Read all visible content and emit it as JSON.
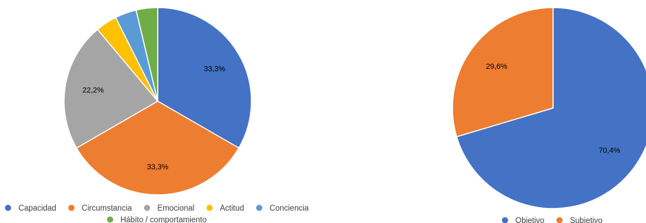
{
  "chart_data": [
    {
      "type": "pie",
      "title": "",
      "categories": [
        "Capacidad",
        "Circumstancia",
        "Emocional",
        "Actitud",
        "Conciencia",
        "Hábito / comportamiento"
      ],
      "values": [
        33.3,
        33.3,
        22.2,
        3.7,
        3.7,
        3.7
      ],
      "data_labels": [
        "33,3%",
        "33,3%",
        "22,2%",
        "",
        "",
        ""
      ],
      "colors": [
        "#4472C4",
        "#ED7D31",
        "#A5A5A5",
        "#FFC000",
        "#5B9BD5",
        "#70AD47"
      ],
      "start_angle": "12 o'clock",
      "direction": "clockwise",
      "legend": {
        "position": "bottom",
        "items": [
          "Capacidad",
          "Circumstancia",
          "Emocional",
          "Actitud",
          "Conciencia",
          "Hábito / comportamiento"
        ]
      }
    },
    {
      "type": "pie",
      "title": "",
      "categories": [
        "Objetivo",
        "Subjetivo"
      ],
      "values": [
        70.4,
        29.6
      ],
      "data_labels": [
        "70,4%",
        "29,6%"
      ],
      "colors": [
        "#4472C4",
        "#ED7D31"
      ],
      "start_angle": "12 o'clock",
      "direction": "clockwise",
      "legend": {
        "position": "bottom",
        "items": [
          "Objetivo",
          "Subjetivo"
        ]
      }
    }
  ]
}
